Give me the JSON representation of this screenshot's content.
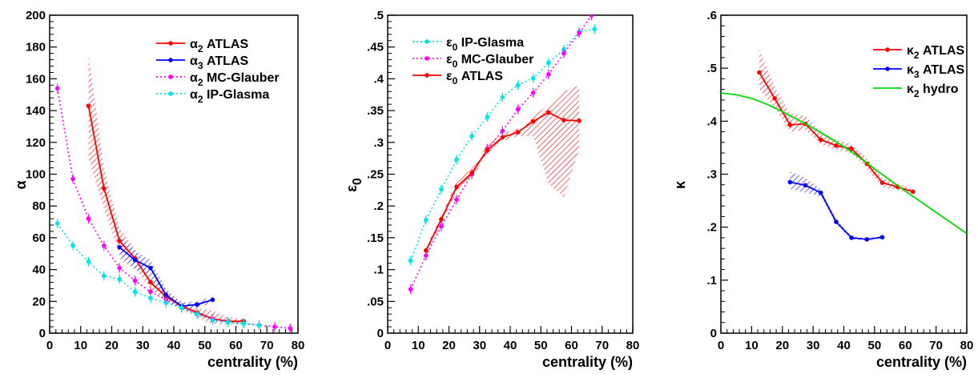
{
  "chart_data": [
    {
      "type": "line",
      "xlabel": "centrality (%)",
      "ylabel": "α",
      "xlim": [
        0,
        80
      ],
      "ylim": [
        0,
        200
      ],
      "xticks": [
        0,
        10,
        20,
        30,
        40,
        50,
        60,
        70,
        80
      ],
      "yticks": [
        0,
        20,
        40,
        60,
        80,
        100,
        120,
        140,
        160,
        180,
        200
      ],
      "grid": false,
      "legend_position": "top-right",
      "series": [
        {
          "name": "α2 ATLAS",
          "legend_main": "α",
          "legend_sub": "2",
          "legend_rest": " ATLAS",
          "color": "#ff0000",
          "dash": "solid",
          "x": [
            12.5,
            17.5,
            22.5,
            27.5,
            32.5,
            37.5,
            42.5,
            47.5,
            52.5,
            57.5,
            62.5
          ],
          "y": [
            143,
            91,
            58,
            47,
            32,
            23,
            17,
            13,
            9,
            7.5,
            7.5
          ],
          "band_low": [
            110,
            78,
            50,
            41,
            28,
            20,
            15,
            10,
            6,
            5.5,
            5.5
          ],
          "band_high": [
            176,
            104,
            66,
            53,
            36,
            26,
            20,
            16,
            14,
            10,
            9
          ]
        },
        {
          "name": "α3 ATLAS",
          "legend_main": "α",
          "legend_sub": "3",
          "legend_rest": " ATLAS",
          "color": "#0000ff",
          "dash": "solid",
          "x": [
            22.5,
            27.5,
            32.5,
            37.5,
            42.5,
            47.5,
            52.5
          ],
          "y": [
            54,
            46,
            41,
            24,
            17,
            18,
            21
          ],
          "band_low": [
            47,
            40,
            36,
            20,
            15,
            16,
            19
          ],
          "band_high": [
            61,
            52,
            46,
            28,
            19,
            20,
            23
          ]
        },
        {
          "name": "α2 MC-Glauber",
          "legend_main": "α",
          "legend_sub": "2",
          "legend_rest": " MC-Glauber",
          "color": "#ff00ff",
          "dash": "dotted",
          "x": [
            2.5,
            7.5,
            12.5,
            17.5,
            22.5,
            27.5,
            32.5,
            37.5,
            42.5,
            47.5,
            52.5,
            57.5,
            62.5,
            67.5,
            72.5,
            77.5
          ],
          "y": [
            154,
            97,
            72,
            55,
            41,
            33,
            26,
            21,
            16,
            12,
            9,
            7,
            6,
            5,
            4,
            3
          ]
        },
        {
          "name": "α2 IP-Glasma",
          "legend_main": "α",
          "legend_sub": "2",
          "legend_rest": " IP-Glasma",
          "color": "#00e5e5",
          "dash": "dotted",
          "x": [
            2.5,
            7.5,
            12.5,
            17.5,
            22.5,
            27.5,
            32.5,
            37.5,
            42.5,
            47.5,
            52.5,
            57.5,
            62.5,
            67.5
          ],
          "y": [
            69,
            55,
            45,
            36,
            34,
            26,
            22,
            19,
            16,
            12,
            8,
            7,
            6,
            5
          ]
        }
      ]
    },
    {
      "type": "line",
      "xlabel": "centrality (%)",
      "ylabel": "ε0",
      "ylabel_main": "ε",
      "ylabel_sub": "0",
      "xlim": [
        0,
        80
      ],
      "ylim": [
        0,
        0.5
      ],
      "xticks": [
        0,
        10,
        20,
        30,
        40,
        50,
        60,
        70,
        80
      ],
      "yticks": [
        0,
        0.05,
        0.1,
        0.15,
        0.2,
        0.25,
        0.3,
        0.35,
        0.4,
        0.45,
        0.5
      ],
      "grid": false,
      "legend_position": "top-left",
      "series": [
        {
          "name": "ε0 IP-Glasma",
          "legend_main": "ε",
          "legend_sub": "0",
          "legend_rest": " IP-Glasma",
          "color": "#00e5e5",
          "dash": "dotted",
          "x": [
            7.5,
            12.5,
            17.5,
            22.5,
            27.5,
            32.5,
            37.5,
            42.5,
            47.5,
            52.5,
            57.5,
            62.5,
            67.5
          ],
          "y": [
            0.114,
            0.178,
            0.226,
            0.273,
            0.31,
            0.34,
            0.371,
            0.39,
            0.401,
            0.425,
            0.446,
            0.474,
            0.478
          ]
        },
        {
          "name": "ε0 MC-Glauber",
          "legend_main": "ε",
          "legend_sub": "0",
          "legend_rest": " MC-Glauber",
          "color": "#ff00ff",
          "dash": "dotted",
          "x": [
            7.5,
            12.5,
            17.5,
            22.5,
            27.5,
            32.5,
            37.5,
            42.5,
            47.5,
            52.5,
            57.5,
            62.5,
            66.5
          ],
          "y": [
            0.069,
            0.122,
            0.168,
            0.21,
            0.25,
            0.29,
            0.318,
            0.352,
            0.378,
            0.407,
            0.44,
            0.472,
            0.5
          ]
        },
        {
          "name": "ε0 ATLAS",
          "legend_main": "ε",
          "legend_sub": "0",
          "legend_rest": " ATLAS",
          "color": "#ff0000",
          "dash": "solid",
          "x": [
            12.5,
            17.5,
            22.5,
            27.5,
            32.5,
            37.5,
            42.5,
            47.5,
            52.5,
            57.5,
            62.5
          ],
          "y": [
            0.13,
            0.179,
            0.23,
            0.252,
            0.288,
            0.308,
            0.316,
            0.333,
            0.347,
            0.335,
            0.334
          ],
          "band_low": [
            0.125,
            0.172,
            0.222,
            0.245,
            0.28,
            0.302,
            0.31,
            0.31,
            0.235,
            0.213,
            0.29
          ],
          "band_high": [
            0.135,
            0.186,
            0.238,
            0.259,
            0.296,
            0.314,
            0.322,
            0.34,
            0.36,
            0.38,
            0.39
          ]
        }
      ]
    },
    {
      "type": "line",
      "xlabel": "centrality (%)",
      "ylabel": "κ",
      "xlim": [
        0,
        80
      ],
      "ylim": [
        0,
        0.6
      ],
      "xticks": [
        0,
        10,
        20,
        30,
        40,
        50,
        60,
        70,
        80
      ],
      "yticks": [
        0,
        0.1,
        0.2,
        0.3,
        0.4,
        0.5,
        0.6
      ],
      "grid": false,
      "legend_position": "top-right",
      "series": [
        {
          "name": "κ2 ATLAS",
          "legend_main": "κ",
          "legend_sub": "2",
          "legend_rest": " ATLAS",
          "color": "#ff0000",
          "dash": "solid",
          "x": [
            12.5,
            17.5,
            22.5,
            27.5,
            32.5,
            37.5,
            42.5,
            47.5,
            52.5,
            57.5,
            62.5
          ],
          "y": [
            0.492,
            0.443,
            0.393,
            0.395,
            0.365,
            0.354,
            0.348,
            0.32,
            0.284,
            0.276,
            0.267
          ],
          "band_low": [
            0.46,
            0.425,
            0.38,
            0.384,
            0.356,
            0.346,
            0.34,
            0.31,
            0.276,
            0.27,
            0.262
          ],
          "band_high": [
            0.535,
            0.465,
            0.415,
            0.41,
            0.378,
            0.365,
            0.357,
            0.33,
            0.293,
            0.282,
            0.272
          ]
        },
        {
          "name": "κ3 ATLAS",
          "legend_main": "κ",
          "legend_sub": "3",
          "legend_rest": " ATLAS",
          "color": "#0000ff",
          "dash": "solid",
          "x": [
            22.5,
            27.5,
            32.5,
            37.5,
            42.5,
            47.5,
            52.5
          ],
          "y": [
            0.285,
            0.279,
            0.265,
            0.21,
            0.18,
            0.177,
            0.181
          ],
          "band_low": [
            0.272,
            0.265,
            0.258,
            0.205,
            0.177,
            0.175,
            0.179
          ],
          "band_high": [
            0.305,
            0.293,
            0.272,
            0.215,
            0.183,
            0.179,
            0.183
          ]
        },
        {
          "name": "κ2 hydro",
          "legend_main": "κ",
          "legend_sub": "2",
          "legend_rest": " hydro",
          "color": "#00dd00",
          "dash": "solid",
          "smooth": true,
          "x": [
            0,
            5,
            10,
            15,
            20,
            25,
            30,
            35,
            40,
            45,
            50,
            55,
            60,
            65,
            70,
            75,
            80
          ],
          "y": [
            0.453,
            0.45,
            0.443,
            0.432,
            0.418,
            0.403,
            0.387,
            0.37,
            0.352,
            0.332,
            0.31,
            0.289,
            0.268,
            0.248,
            0.228,
            0.208,
            0.188
          ]
        }
      ]
    }
  ]
}
